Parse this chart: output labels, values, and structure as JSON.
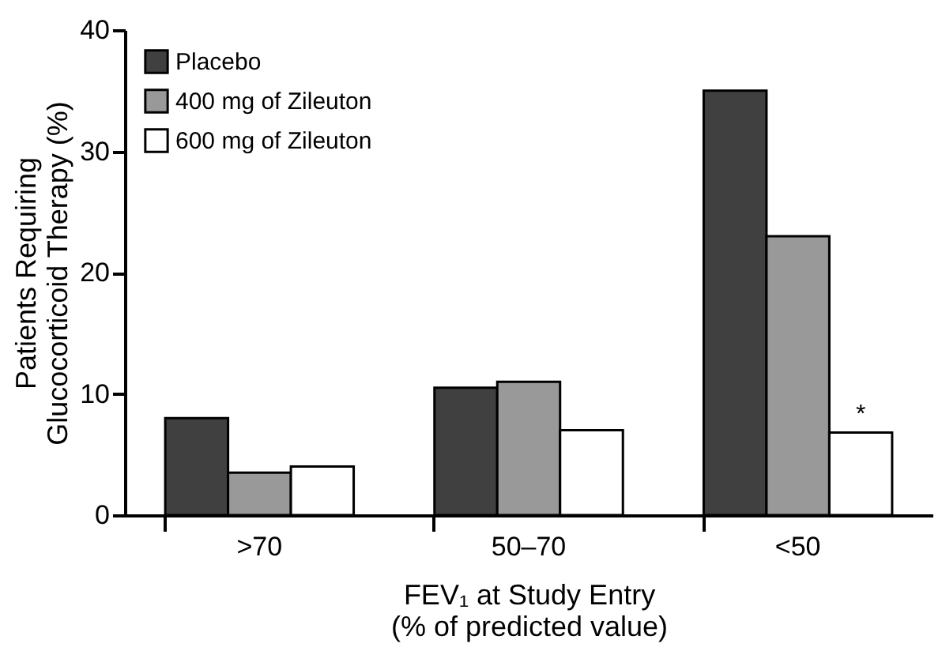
{
  "chart_data": {
    "type": "bar",
    "categories": [
      ">70",
      "50–70",
      "<50"
    ],
    "series": [
      {
        "name": "Placebo",
        "color": "#404040",
        "values": [
          8.0,
          10.5,
          35.0
        ]
      },
      {
        "name": "400 mg of Zileuton",
        "color": "#999999",
        "values": [
          3.5,
          11.0,
          23.0
        ]
      },
      {
        "name": "600 mg of Zileuton",
        "color": "#ffffff",
        "values": [
          4.0,
          7.0,
          6.8
        ]
      }
    ],
    "xlabel": "FEV₁ at Study Entry\n(% of predicted value)",
    "ylabel": "Patients Requiring\nGlucocorticoid Therapy (%)",
    "ylim": [
      0,
      40
    ],
    "yticks": [
      0,
      10,
      20,
      30,
      40
    ],
    "grid": false,
    "legend": "top left",
    "annotations": [
      "*"
    ]
  }
}
